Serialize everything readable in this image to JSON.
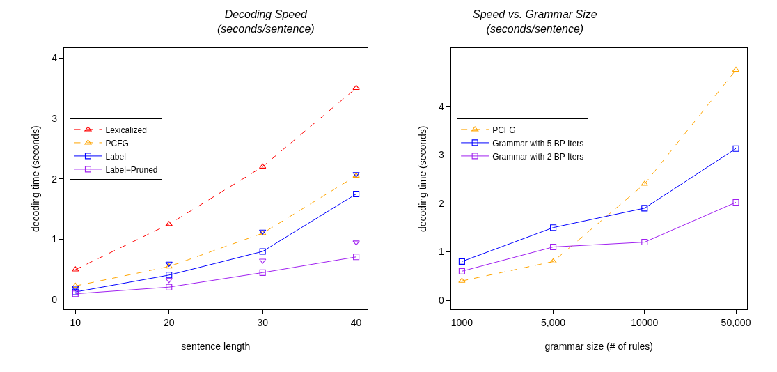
{
  "chart_data": [
    {
      "type": "line",
      "title": "Decoding Speed",
      "subtitle": "(seconds/sentence)",
      "xlabel": "sentence length",
      "ylabel": "decoding time (seconds)",
      "x": [
        10,
        20,
        30,
        40
      ],
      "xlim": [
        8.77,
        41.2
      ],
      "xticks": [
        10,
        20,
        30,
        40
      ],
      "ylim": [
        -0.16,
        4.16
      ],
      "yticks": [
        0,
        1,
        2,
        3,
        4
      ],
      "legend": "top left",
      "series": [
        {
          "name": "Lexicalized",
          "color": "#ff0000",
          "values": [
            0.5,
            1.25,
            2.2,
            3.5
          ],
          "marker": "triangle",
          "line_style": "dashed"
        },
        {
          "name": "PCFG",
          "color": "#ffa500",
          "values": [
            0.23,
            0.55,
            1.1,
            2.05
          ],
          "marker": "triangle",
          "line_style": "dashed"
        },
        {
          "name": "Label",
          "color": "#0000ff",
          "values": [
            0.13,
            0.41,
            0.8,
            1.75
          ],
          "marker": "square",
          "line_style": "solid"
        },
        {
          "name": "Label−Pruned",
          "color": "#a020f0",
          "values": [
            0.1,
            0.21,
            0.45,
            0.71
          ],
          "marker": "square",
          "line_style": "solid"
        },
        {
          "type": "scatter",
          "color": "#0000ff",
          "values": [
            0.2,
            0.6,
            1.13,
            2.08
          ],
          "marker": "triangle-down"
        },
        {
          "type": "scatter",
          "color": "#a020f0",
          "values": [
            null,
            0.33,
            0.65,
            0.95
          ],
          "marker": "triangle-down"
        }
      ]
    },
    {
      "type": "line",
      "title": "Speed vs. Grammar Size",
      "subtitle": "(seconds/sentence)",
      "xlabel": "grammar size (# of rules)",
      "ylabel": "decoding time (seconds)",
      "categories": [
        "1000",
        "5,000",
        "10000",
        "50,000"
      ],
      "ylim": [
        -0.19,
        5.2
      ],
      "yticks": [
        0,
        1,
        2,
        3,
        4
      ],
      "legend": "top left",
      "series": [
        {
          "name": "PCFG",
          "color": "#ffa500",
          "values": [
            0.4,
            0.8,
            2.4,
            4.75
          ],
          "marker": "triangle",
          "line_style": "dashed"
        },
        {
          "name": "Grammar with 5 BP Iters",
          "color": "#0000ff",
          "values": [
            0.8,
            1.5,
            1.9,
            3.13
          ],
          "marker": "square",
          "line_style": "solid"
        },
        {
          "name": "Grammar with 2 BP Iters",
          "color": "#a020f0",
          "values": [
            0.6,
            1.1,
            1.2,
            2.02
          ],
          "marker": "square",
          "line_style": "solid"
        }
      ]
    }
  ]
}
